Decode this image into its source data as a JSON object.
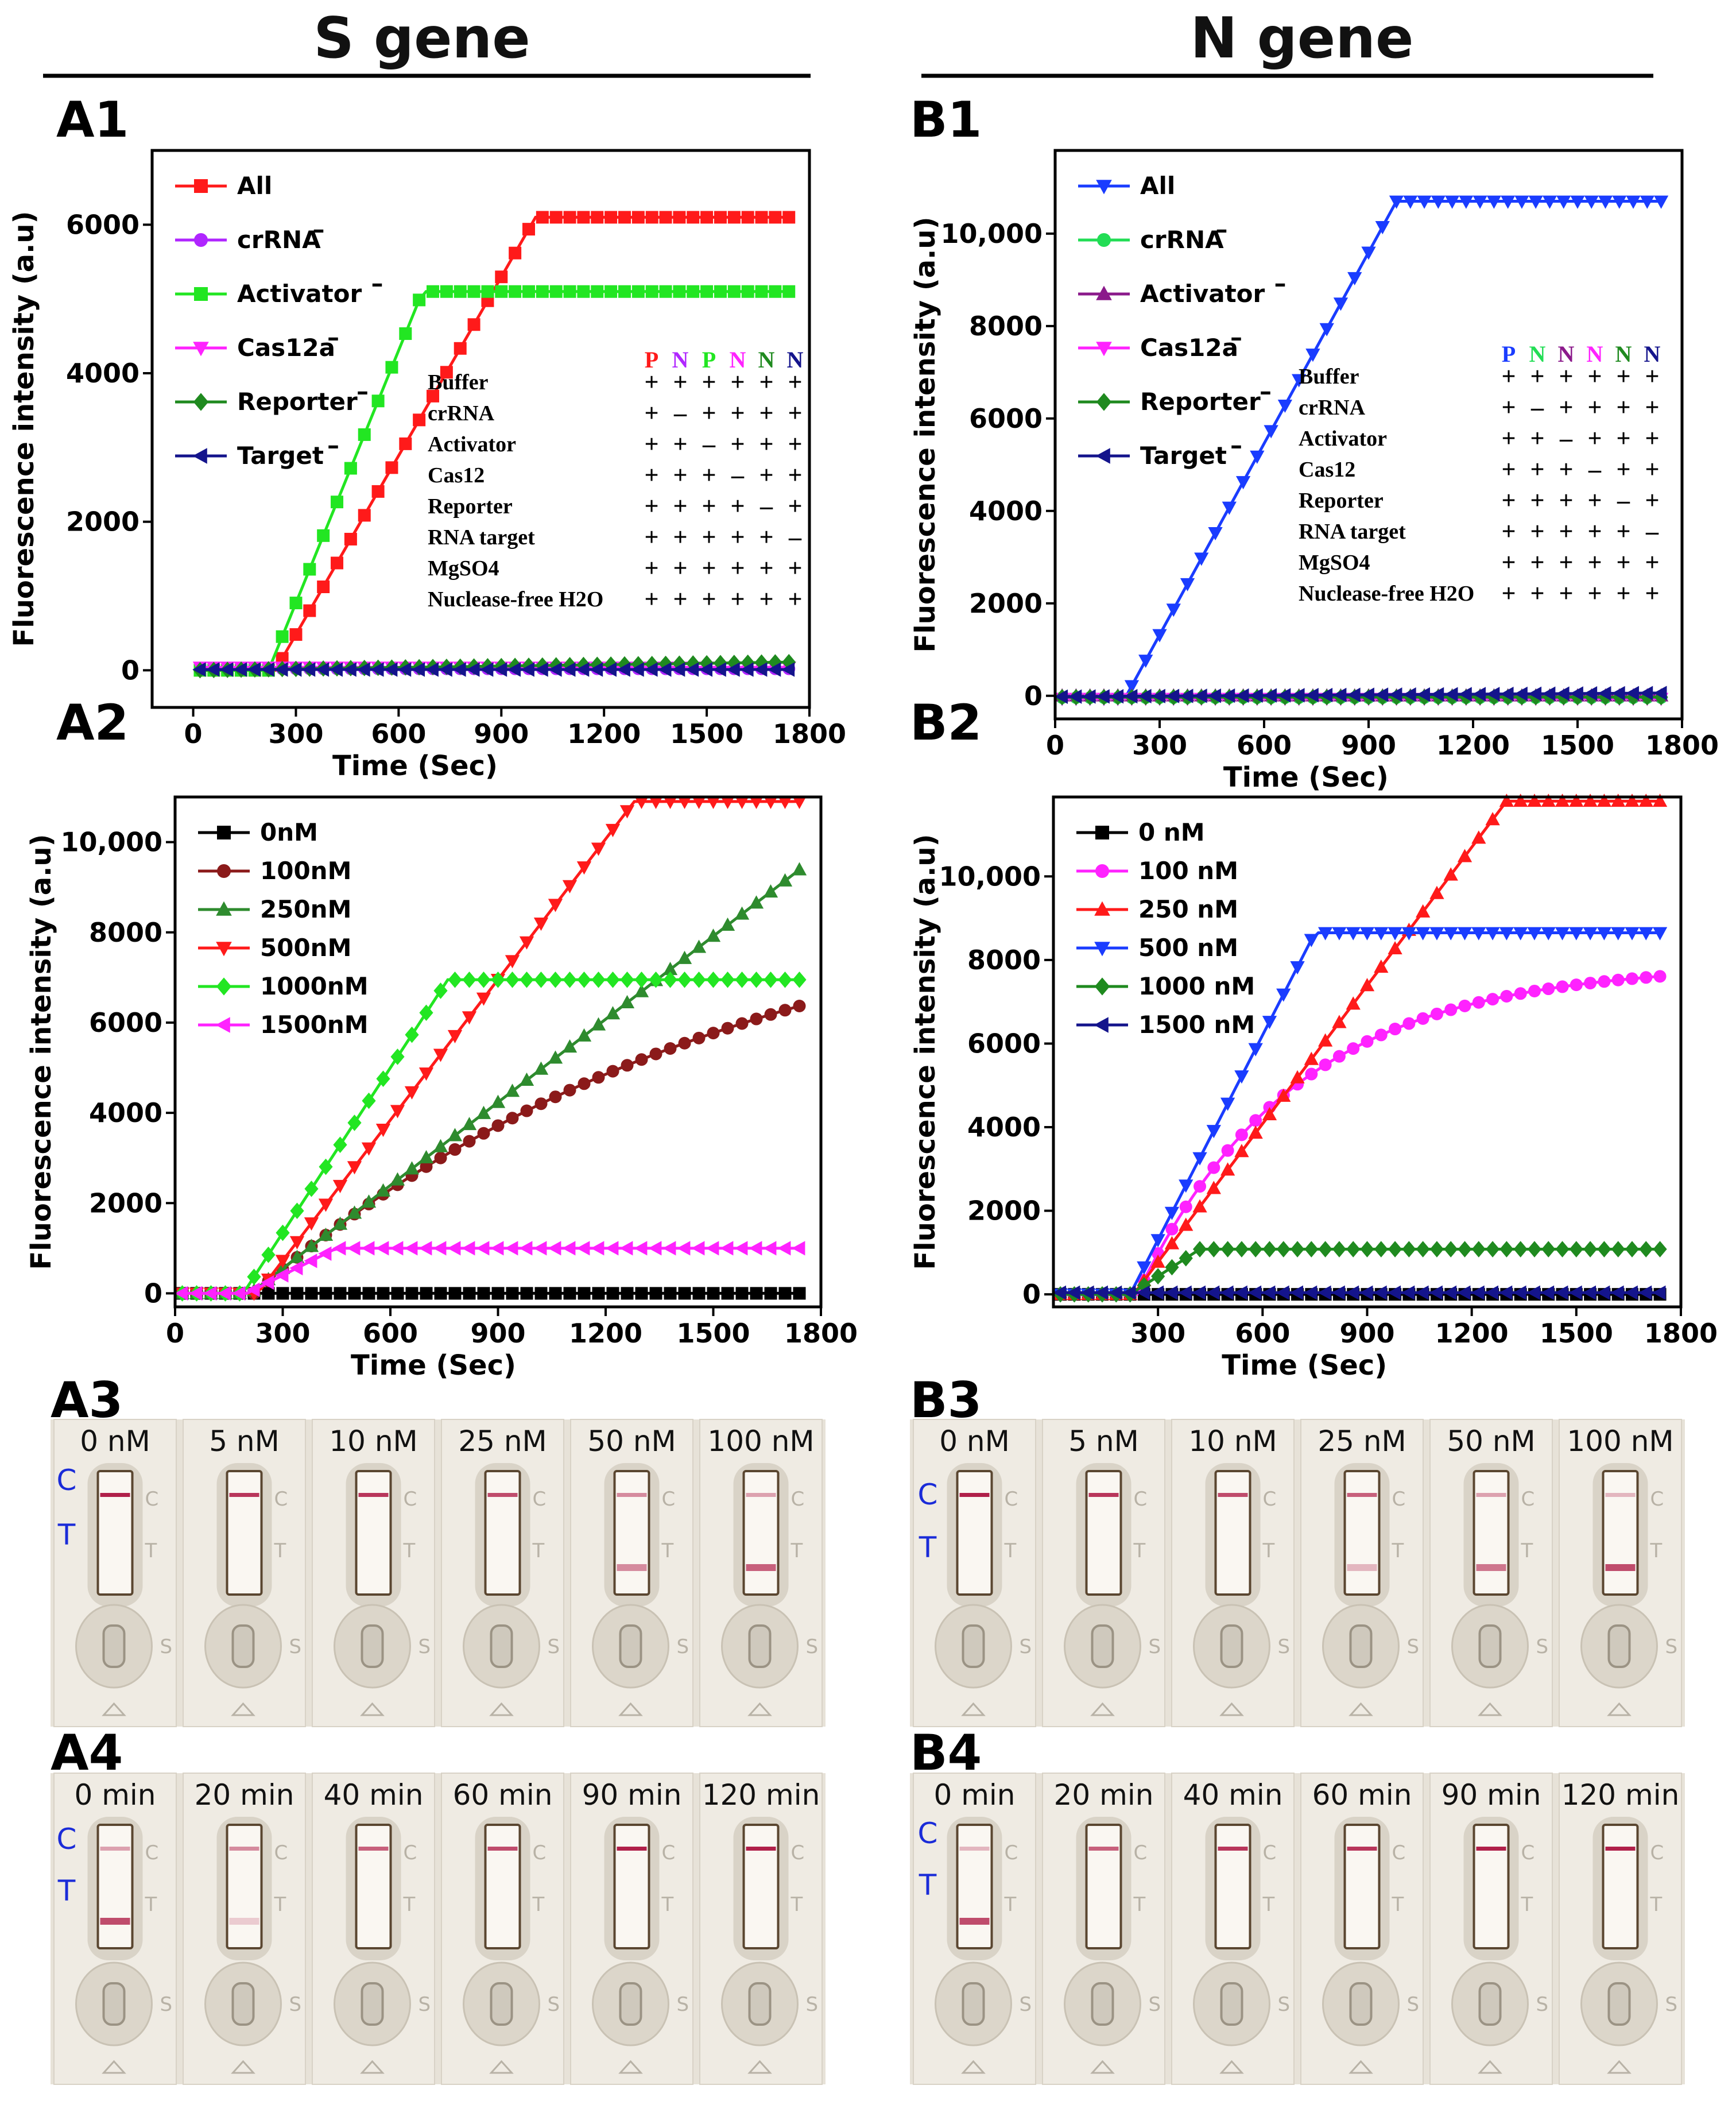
{
  "headers": {
    "left": "S gene",
    "right": "N gene"
  },
  "colors": {
    "red": "#ff1a1a",
    "purple": "#b026ff",
    "lime": "#22e622",
    "magenta": "#ff22ff",
    "darkgreen": "#1f8a1f",
    "navy": "#14148c",
    "blue": "#1a3cff",
    "green": "#22dd55",
    "darkpurple": "#8b1a8b",
    "black": "#000000",
    "brown": "#8b1a1a",
    "grass": "#2e8b2e",
    "ct_blue": "#1a2bd8"
  },
  "chart_data": [
    {
      "id": "A1",
      "label": "A1",
      "type": "line",
      "xlabel": "Time (Sec)",
      "ylabel": "Fluorescence intensity (a.u)",
      "xlim": [
        -120,
        1800
      ],
      "ylim": [
        -500,
        7000
      ],
      "xticks": [
        0,
        300,
        600,
        900,
        1200,
        1500,
        1800
      ],
      "xtick_labels": [
        "0",
        "300",
        "600",
        "900",
        "1200",
        "1500",
        "1800"
      ],
      "yticks": [
        0,
        2000,
        4000,
        6000
      ],
      "ytick_labels": [
        "0",
        "2000",
        "4000",
        "6000"
      ],
      "legend_position": "top-left",
      "series": [
        {
          "name": "All",
          "suffix": "",
          "color": "red",
          "marker": "square",
          "model": "ramp",
          "start": 240,
          "end": 1000,
          "max": 6100,
          "base": 0
        },
        {
          "name": "crRNA",
          "suffix": "–",
          "color": "purple",
          "marker": "circle",
          "model": "flat",
          "level": 20
        },
        {
          "name": "Activator",
          "suffix": "–",
          "color": "lime",
          "marker": "square",
          "model": "ramp",
          "start": 220,
          "end": 670,
          "max": 5100,
          "base": 0
        },
        {
          "name": "Cas12a",
          "suffix": "–",
          "color": "magenta",
          "marker": "triangle-down",
          "model": "flat",
          "level": 40
        },
        {
          "name": "Reporter",
          "suffix": "–",
          "color": "darkgreen",
          "marker": "diamond",
          "model": "slope",
          "from": 0,
          "to": 110
        },
        {
          "name": "Target",
          "suffix": "–",
          "color": "navy",
          "marker": "triangle-left",
          "model": "flat",
          "level": 10
        }
      ],
      "table": {
        "columns": [
          {
            "text": "P",
            "color": "red"
          },
          {
            "text": "N",
            "color": "purple"
          },
          {
            "text": "P",
            "color": "lime"
          },
          {
            "text": "N",
            "color": "magenta"
          },
          {
            "text": "N",
            "color": "darkgreen"
          },
          {
            "text": "N",
            "color": "navy"
          }
        ],
        "rows": [
          {
            "label": "Buffer",
            "cells": [
              "+",
              "+",
              "+",
              "+",
              "+",
              "+"
            ]
          },
          {
            "label": "crRNA",
            "cells": [
              "+",
              "–",
              "+",
              "+",
              "+",
              "+"
            ]
          },
          {
            "label": "Activator",
            "cells": [
              "+",
              "+",
              "–",
              "+",
              "+",
              "+"
            ]
          },
          {
            "label": "Cas12",
            "cells": [
              "+",
              "+",
              "+",
              "–",
              "+",
              "+"
            ]
          },
          {
            "label": "Reporter",
            "cells": [
              "+",
              "+",
              "+",
              "+",
              "–",
              "+"
            ]
          },
          {
            "label": "RNA target",
            "cells": [
              "+",
              "+",
              "+",
              "+",
              "+",
              "–"
            ]
          },
          {
            "label": "MgSO4",
            "cells": [
              "+",
              "+",
              "+",
              "+",
              "+",
              "+"
            ]
          },
          {
            "label": "Nuclease-free H2O",
            "cells": [
              "+",
              "+",
              "+",
              "+",
              "+",
              "+"
            ]
          }
        ]
      }
    },
    {
      "id": "B1",
      "label": "B1",
      "type": "line",
      "xlabel": "Time (Sec)",
      "ylabel": "Fluorescence intensity (a.u)",
      "xlim": [
        0,
        1800
      ],
      "ylim": [
        -500,
        11800
      ],
      "xticks": [
        0,
        300,
        600,
        900,
        1200,
        1500,
        1800
      ],
      "xtick_labels": [
        "0",
        "300",
        "600",
        "900",
        "1200",
        "1500",
        "1800"
      ],
      "yticks": [
        0,
        2000,
        4000,
        6000,
        8000,
        10000
      ],
      "ytick_labels": [
        "0",
        "2000",
        "4000",
        "6000",
        "8000",
        "10,000"
      ],
      "legend_position": "top-left",
      "series": [
        {
          "name": "All",
          "suffix": "",
          "color": "blue",
          "marker": "triangle-down",
          "model": "ramp",
          "start": 200,
          "end": 980,
          "max": 10700,
          "base": -60
        },
        {
          "name": "crRNA",
          "suffix": "–",
          "color": "green",
          "marker": "circle",
          "model": "flat",
          "level": -40
        },
        {
          "name": "Activator",
          "suffix": "–",
          "color": "darkpurple",
          "marker": "triangle-up",
          "model": "flat",
          "level": 0
        },
        {
          "name": "Cas12a",
          "suffix": "–",
          "color": "magenta",
          "marker": "triangle-down",
          "model": "flat",
          "level": -60
        },
        {
          "name": "Reporter",
          "suffix": "–",
          "color": "darkgreen",
          "marker": "diamond",
          "model": "flat",
          "level": -30
        },
        {
          "name": "Target",
          "suffix": "–",
          "color": "navy",
          "marker": "triangle-left",
          "model": "slope",
          "from": -20,
          "to": 60
        }
      ],
      "table": {
        "columns": [
          {
            "text": "P",
            "color": "blue"
          },
          {
            "text": "N",
            "color": "green"
          },
          {
            "text": "N",
            "color": "darkpurple"
          },
          {
            "text": "N",
            "color": "magenta"
          },
          {
            "text": "N",
            "color": "darkgreen"
          },
          {
            "text": "N",
            "color": "navy"
          }
        ],
        "rows": [
          {
            "label": "Buffer",
            "cells": [
              "+",
              "+",
              "+",
              "+",
              "+",
              "+"
            ]
          },
          {
            "label": "crRNA",
            "cells": [
              "+",
              "–",
              "+",
              "+",
              "+",
              "+"
            ]
          },
          {
            "label": "Activator",
            "cells": [
              "+",
              "+",
              "–",
              "+",
              "+",
              "+"
            ]
          },
          {
            "label": "Cas12",
            "cells": [
              "+",
              "+",
              "+",
              "–",
              "+",
              "+"
            ]
          },
          {
            "label": "Reporter",
            "cells": [
              "+",
              "+",
              "+",
              "+",
              "–",
              "+"
            ]
          },
          {
            "label": "RNA target",
            "cells": [
              "+",
              "+",
              "+",
              "+",
              "+",
              "–"
            ]
          },
          {
            "label": "MgSO4",
            "cells": [
              "+",
              "+",
              "+",
              "+",
              "+",
              "+"
            ]
          },
          {
            "label": "Nuclease-free H2O",
            "cells": [
              "+",
              "+",
              "+",
              "+",
              "+",
              "+"
            ]
          }
        ]
      }
    },
    {
      "id": "A2",
      "label": "A2",
      "type": "line",
      "xlabel": "Time (Sec)",
      "ylabel": "Fluorescence intensity (a.u)",
      "xlim": [
        0,
        1800
      ],
      "ylim": [
        -300,
        11000
      ],
      "xticks": [
        0,
        300,
        600,
        900,
        1200,
        1500,
        1800
      ],
      "xtick_labels": [
        "0",
        "300",
        "600",
        "900",
        "1200",
        "1500",
        "1800"
      ],
      "yticks": [
        0,
        2000,
        4000,
        6000,
        8000,
        10000
      ],
      "ytick_labels": [
        "0",
        "2000",
        "4000",
        "6000",
        "8000",
        "10,000"
      ],
      "legend_position": "top-left",
      "series": [
        {
          "name": "0nM",
          "suffix": "",
          "color": "black",
          "marker": "square",
          "model": "flat",
          "level": 0
        },
        {
          "name": "100nM",
          "suffix": "",
          "color": "brown",
          "marker": "circle",
          "model": "curve",
          "start": 220,
          "max": 9500,
          "k": 0.00073,
          "base": 0
        },
        {
          "name": "250nM",
          "suffix": "",
          "color": "grass",
          "marker": "triangle-up",
          "model": "ramp",
          "start": 210,
          "end": 1750,
          "max": 9450,
          "base": 0
        },
        {
          "name": "500nM",
          "suffix": "",
          "color": "red",
          "marker": "triangle-down",
          "model": "ramp",
          "start": 230,
          "end": 1280,
          "max": 10900,
          "base": 0
        },
        {
          "name": "1000nM",
          "suffix": "",
          "color": "lime",
          "marker": "diamond",
          "model": "ramp",
          "start": 190,
          "end": 760,
          "max": 6950,
          "base": 0
        },
        {
          "name": "1500nM",
          "suffix": "",
          "color": "magenta",
          "marker": "triangle-left",
          "model": "ramp",
          "start": 200,
          "end": 450,
          "max": 1000,
          "base": 0
        }
      ]
    },
    {
      "id": "B2",
      "label": "B2",
      "type": "line",
      "xlabel": "Time (Sec)",
      "ylabel": "Fluorescence intensity (a.u)",
      "xlim": [
        0,
        1800
      ],
      "ylim": [
        -300,
        11900
      ],
      "xticks": [
        300,
        600,
        900,
        1200,
        1500,
        1800
      ],
      "xtick_labels": [
        "300",
        "600",
        "900",
        "1200",
        "1500",
        "1800"
      ],
      "yticks": [
        0,
        2000,
        4000,
        6000,
        8000,
        10000
      ],
      "ytick_labels": [
        "0",
        "2000",
        "4000",
        "6000",
        "8000",
        "10,000"
      ],
      "legend_position": "top-left",
      "series": [
        {
          "name": "0 nM",
          "suffix": "",
          "color": "black",
          "marker": "square",
          "model": "flat",
          "level": 0
        },
        {
          "name": "100 nM",
          "suffix": "",
          "color": "magenta",
          "marker": "circle",
          "model": "curve",
          "start": 240,
          "max": 7900,
          "k": 0.0022,
          "base": 0
        },
        {
          "name": "250 nM",
          "suffix": "",
          "color": "red",
          "marker": "triangle-up",
          "model": "ramp",
          "start": 230,
          "end": 1300,
          "max": 11800,
          "base": 0
        },
        {
          "name": "500 nM",
          "suffix": "",
          "color": "blue",
          "marker": "triangle-down",
          "model": "ramp",
          "start": 220,
          "end": 750,
          "max": 8650,
          "base": 0
        },
        {
          "name": "1000 nM",
          "suffix": "",
          "color": "darkgreen",
          "marker": "diamond",
          "model": "ramp",
          "start": 220,
          "end": 420,
          "max": 1080,
          "base": 0
        },
        {
          "name": "1500 nM",
          "suffix": "",
          "color": "navy",
          "marker": "triangle-left",
          "model": "flat",
          "level": 40
        }
      ]
    }
  ],
  "strips": [
    {
      "id": "A3",
      "label": "A3",
      "ct": [
        "C",
        "T"
      ],
      "items": [
        {
          "label": "0 nM",
          "control_band": 1.0,
          "test_band": 0.0
        },
        {
          "label": "5 nM",
          "control_band": 0.9,
          "test_band": 0.0
        },
        {
          "label": "10 nM",
          "control_band": 0.9,
          "test_band": 0.0
        },
        {
          "label": "25 nM",
          "control_band": 0.8,
          "test_band": 0.0
        },
        {
          "label": "50 nM",
          "control_band": 0.5,
          "test_band": 0.5
        },
        {
          "label": "100 nM",
          "control_band": 0.4,
          "test_band": 0.7
        }
      ]
    },
    {
      "id": "B3",
      "label": "B3",
      "ct": [
        "C",
        "T"
      ],
      "items": [
        {
          "label": "0 nM",
          "control_band": 1.0,
          "test_band": 0.0
        },
        {
          "label": "5 nM",
          "control_band": 0.9,
          "test_band": 0.0
        },
        {
          "label": "10 nM",
          "control_band": 0.8,
          "test_band": 0.0
        },
        {
          "label": "25 nM",
          "control_band": 0.7,
          "test_band": 0.3
        },
        {
          "label": "50 nM",
          "control_band": 0.4,
          "test_band": 0.6
        },
        {
          "label": "100 nM",
          "control_band": 0.3,
          "test_band": 0.8
        }
      ]
    },
    {
      "id": "A4",
      "label": "A4",
      "ct": [
        "C",
        "T"
      ],
      "items": [
        {
          "label": "0 min",
          "control_band": 0.4,
          "test_band": 0.8
        },
        {
          "label": "20 min",
          "control_band": 0.5,
          "test_band": 0.2
        },
        {
          "label": "40 min",
          "control_band": 0.7,
          "test_band": 0.0
        },
        {
          "label": "60 min",
          "control_band": 0.8,
          "test_band": 0.0
        },
        {
          "label": "90 min",
          "control_band": 1.0,
          "test_band": 0.0
        },
        {
          "label": "120 min",
          "control_band": 1.0,
          "test_band": 0.0
        }
      ]
    },
    {
      "id": "B4",
      "label": "B4",
      "ct": [
        "C",
        "T"
      ],
      "items": [
        {
          "label": "0 min",
          "control_band": 0.3,
          "test_band": 0.8
        },
        {
          "label": "20 min",
          "control_band": 0.7,
          "test_band": 0.0
        },
        {
          "label": "40 min",
          "control_band": 0.9,
          "test_band": 0.0
        },
        {
          "label": "60 min",
          "control_band": 0.9,
          "test_band": 0.0
        },
        {
          "label": "90 min",
          "control_band": 1.0,
          "test_band": 0.0
        },
        {
          "label": "120 min",
          "control_band": 1.0,
          "test_band": 0.0
        }
      ]
    }
  ]
}
